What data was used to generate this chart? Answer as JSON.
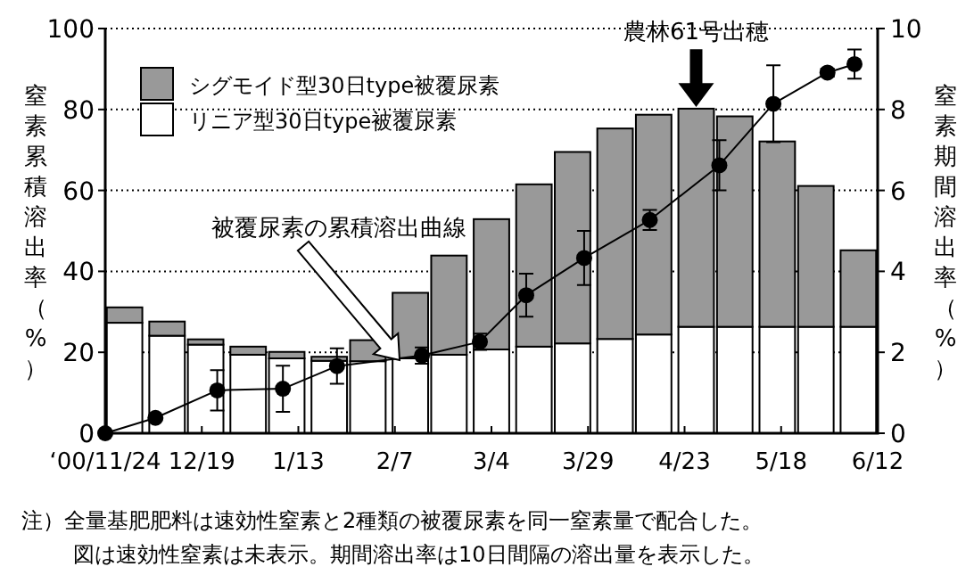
{
  "chart_data": {
    "type": "bar",
    "stacked": true,
    "ylabel": "窒素累積溶出率（%）",
    "y2label": "窒素期間溶出率（%）",
    "xlim": [
      "2000-11-24",
      "2001-06-12"
    ],
    "xticks": [
      {
        "value": "2000-11-24",
        "label": "‘00/11/24"
      },
      {
        "value": "2000-12-19",
        "label": "12/19"
      },
      {
        "value": "2001-01-13",
        "label": "1/13"
      },
      {
        "value": "2001-02-07",
        "label": "2/7"
      },
      {
        "value": "2001-03-04",
        "label": "3/4"
      },
      {
        "value": "2001-03-29",
        "label": "3/29"
      },
      {
        "value": "2001-04-23",
        "label": "4/23"
      },
      {
        "value": "2001-05-18",
        "label": "5/18"
      },
      {
        "value": "2001-06-12",
        "label": "6/12"
      }
    ],
    "ylim": [
      0,
      100
    ],
    "yticks": [
      0,
      20,
      40,
      60,
      80,
      100
    ],
    "y2lim": [
      0,
      10
    ],
    "y2ticks": [
      0,
      2,
      4,
      6,
      8,
      10
    ],
    "grid": "y",
    "legend": "top left",
    "series": [
      {
        "name": "リニア型30日type被覆尿素",
        "color": "#ffffff",
        "axis": "y2",
        "x": [
          "2000-11-29",
          "2000-12-10",
          "2000-12-20",
          "2000-12-31",
          "2001-01-10",
          "2001-01-21",
          "2001-01-31",
          "2001-02-11",
          "2001-02-21",
          "2001-03-04",
          "2001-03-15",
          "2001-03-25",
          "2001-04-05",
          "2001-04-15",
          "2001-04-26",
          "2001-05-06",
          "2001-05-17",
          "2001-05-27",
          "2001-06-07"
        ],
        "values": [
          2.73,
          2.41,
          2.19,
          1.94,
          1.85,
          1.79,
          1.78,
          1.85,
          1.94,
          2.07,
          2.14,
          2.22,
          2.33,
          2.44,
          2.63,
          2.63,
          2.63,
          2.63,
          2.63
        ]
      },
      {
        "name": "シグモイド型30日type被覆尿素",
        "color": "#999999",
        "axis": "y2",
        "x": [
          "2000-11-29",
          "2000-12-10",
          "2000-12-20",
          "2000-12-31",
          "2001-01-10",
          "2001-01-21",
          "2001-01-31",
          "2001-02-11",
          "2001-02-21",
          "2001-03-04",
          "2001-03-15",
          "2001-03-25",
          "2001-04-05",
          "2001-04-15",
          "2001-04-26",
          "2001-05-06",
          "2001-05-17",
          "2001-05-27",
          "2001-06-07"
        ],
        "values": [
          0.38,
          0.35,
          0.13,
          0.2,
          0.16,
          0.1,
          0.52,
          1.62,
          2.45,
          3.22,
          4.01,
          4.73,
          5.2,
          5.43,
          5.39,
          5.2,
          4.58,
          3.48,
          1.89
        ]
      },
      {
        "type": "line",
        "color": "#000000",
        "marker": "circle",
        "x": [
          "2000-11-24",
          "2000-12-07",
          "2000-12-23",
          "2001-01-09",
          "2001-01-23",
          "2001-02-14",
          "2001-03-01",
          "2001-03-13",
          "2001-03-28",
          "2001-04-14",
          "2001-05-02",
          "2001-05-16",
          "2001-05-30",
          "2001-06-06"
        ],
        "values": [
          0,
          3.8,
          10.6,
          11,
          16.6,
          19.2,
          22.6,
          34.1,
          43.3,
          52.7,
          66.2,
          81.4,
          89.1,
          91.2
        ],
        "errors": [
          null,
          null,
          5,
          5.7,
          4.4,
          2,
          2,
          5.3,
          6.7,
          2.5,
          6.2,
          9.5,
          1,
          3.6
        ]
      }
    ],
    "annotations": [
      "被覆尿素の累積溶出曲線",
      {
        "text": "農林61号出穂",
        "x": "2001-04-26",
        "y": 81
      },
      "注）全量基肥肥料は速効性窒素と2種類の被覆尿素を同一窒素量で配合した。",
      "図は速効性窒素は未表示。期間溶出率は10日間隔の溶出量を表示した。"
    ]
  }
}
